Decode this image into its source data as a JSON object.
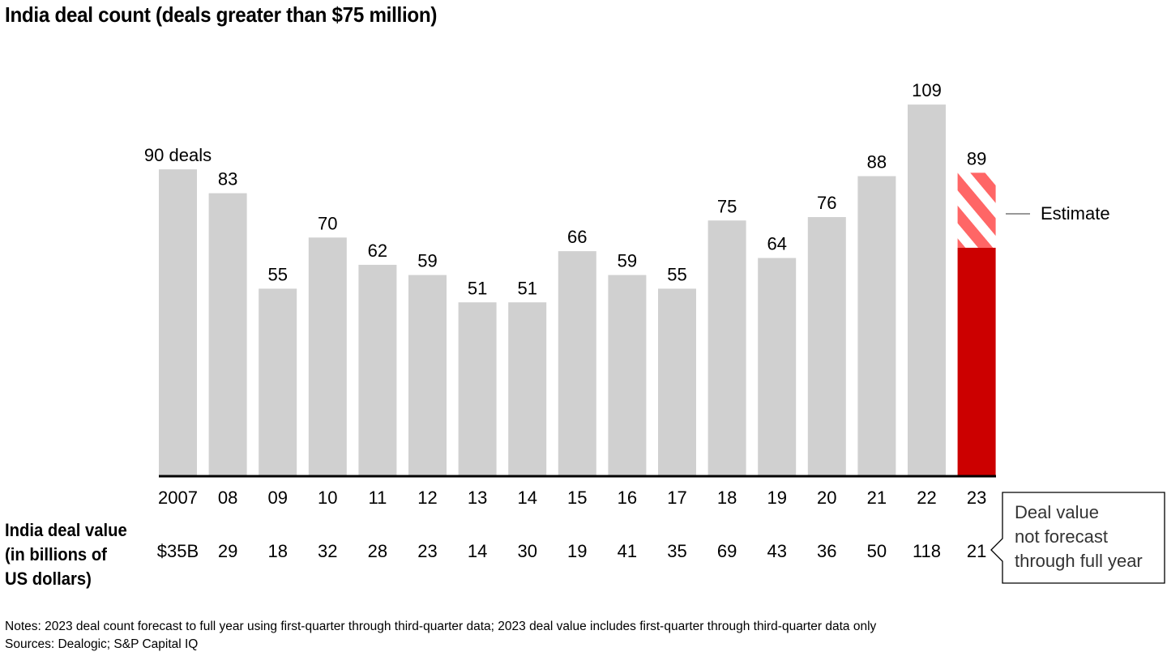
{
  "title": "India deal count (deals greater than $75 million)",
  "chart_data": {
    "type": "bar",
    "title": "India deal count (deals greater than $75 million)",
    "xlabel": "",
    "ylabel": "",
    "ylim": [
      0,
      115
    ],
    "grid": false,
    "categories": [
      "2007",
      "08",
      "09",
      "10",
      "11",
      "12",
      "13",
      "14",
      "15",
      "16",
      "17",
      "18",
      "19",
      "20",
      "21",
      "22",
      "23"
    ],
    "series": [
      {
        "name": "Deal count",
        "values": [
          90,
          83,
          55,
          70,
          62,
          59,
          51,
          51,
          66,
          59,
          55,
          75,
          64,
          76,
          88,
          109,
          89
        ],
        "data_labels": [
          "90 deals",
          "83",
          "55",
          "70",
          "62",
          "59",
          "51",
          "51",
          "66",
          "59",
          "55",
          "75",
          "64",
          "76",
          "88",
          "109",
          "89"
        ]
      }
    ],
    "estimate": {
      "category": "23",
      "actual_value": 67,
      "estimated_total": 89,
      "label": "Estimate"
    },
    "deal_value_row": {
      "label": "India deal value (in billions of US dollars)",
      "label_lines": [
        "India deal value",
        "(in billions of",
        "US dollars)"
      ],
      "values": [
        "$35B",
        "29",
        "18",
        "32",
        "28",
        "23",
        "14",
        "30",
        "19",
        "41",
        "35",
        "69",
        "43",
        "36",
        "50",
        "118",
        "21"
      ]
    },
    "colors": {
      "bar": "#d0d0d0",
      "highlight": "#cc0000",
      "estimate_stripe": "#ff6666",
      "axis": "#000000"
    },
    "callout": {
      "lines": [
        "Deal value",
        "not forecast",
        "through full year"
      ]
    }
  },
  "notes": "Notes: 2023 deal count forecast to full year using first-quarter through third-quarter data; 2023 deal value includes first-quarter through third-quarter data only",
  "sources": "Sources: Dealogic; S&P Capital IQ"
}
